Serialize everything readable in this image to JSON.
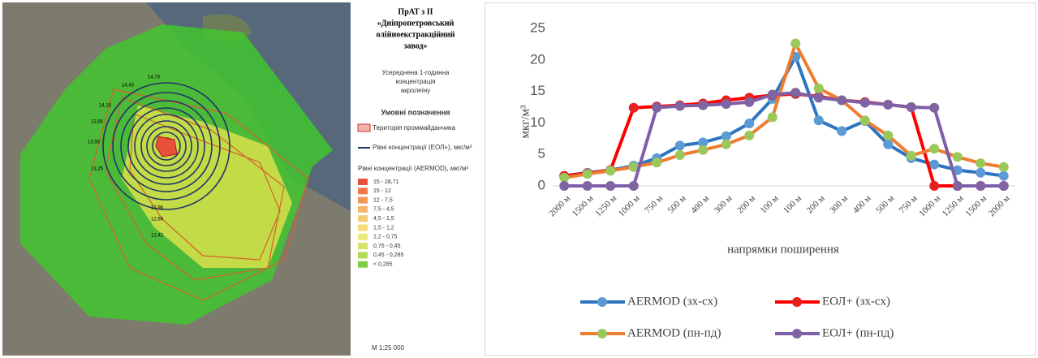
{
  "map": {
    "title": [
      "ПрАТ з ІІ",
      "«Дніпропетровський",
      "олійноекстракційний",
      "завод»"
    ],
    "subtitle": [
      "Усереднена 1-годинна",
      "концентрація",
      "акролеїну"
    ],
    "legend_title": "Умовні позначення",
    "site_label": "Територія проммайданчика",
    "eol_label": "Рівні концентрації (ЕОЛ+), мкг/м³",
    "aermod_label": "Рівні концентрації (AERMOD), мкг/м³",
    "levels": [
      "15 - 28,71",
      "15 - 12",
      "12 - 7,5",
      "7,5 - 4,5",
      "4,5 - 1,5",
      "1,5 - 1,2",
      "1,2 - 0,75",
      "0,75 - 0,45",
      "0,45 - 0,285",
      "< 0,285"
    ],
    "level_colors": [
      "#e8503a",
      "#ef7447",
      "#f39757",
      "#f6b46a",
      "#f7cb74",
      "#f4dd78",
      "#ece77a",
      "#d6e46a",
      "#b3da55",
      "#7fcd45"
    ],
    "contours": [
      "14,73",
      "14,43",
      "14,16",
      "13,86",
      "13,56",
      "13,25",
      "12,96",
      "12,69",
      "12,42"
    ],
    "scale": "М 1:25 000"
  },
  "chart_data": {
    "type": "line",
    "y_label": "мкг/м³",
    "x_label": "напрямки поширення",
    "categories": [
      "2000 м",
      "1500 м",
      "1250 м",
      "1000 м",
      "750 м",
      "500 м",
      "400 м",
      "300 м",
      "200 м",
      "100 м",
      "100 м",
      "200 м",
      "300 м",
      "400 м",
      "500 м",
      "750 м",
      "1000 м",
      "1250 м",
      "1500 м",
      "2000 м"
    ],
    "ylim": [
      0,
      25
    ],
    "yticks": [
      0,
      5,
      10,
      15,
      20,
      25
    ],
    "series": [
      {
        "name": "AERMOD (зх-сх)",
        "color": "#2e75c0",
        "marker_color": "#5b9bd5",
        "values": [
          1.6,
          2.1,
          2.5,
          3.2,
          4.4,
          6.4,
          6.9,
          7.9,
          9.9,
          13.8,
          20.5,
          10.4,
          8.7,
          10.3,
          6.6,
          4.4,
          3.4,
          2.5,
          2.1,
          1.6
        ]
      },
      {
        "name": "ЕОЛ+ (зх-сх)",
        "color": "#ff0000",
        "marker_color": "#e82020",
        "values": [
          1.6,
          2.0,
          2.5,
          12.4,
          12.6,
          12.8,
          13.1,
          13.6,
          14.0,
          14.4,
          14.6,
          14.2,
          13.6,
          13.3,
          12.9,
          12.5,
          0,
          0,
          0,
          0
        ]
      },
      {
        "name": "AERMOD (пн-пд)",
        "color": "#ed7d31",
        "marker_color": "#9bc85b",
        "values": [
          1.3,
          1.9,
          2.4,
          3.0,
          3.7,
          4.9,
          5.7,
          6.6,
          8.0,
          10.9,
          22.6,
          15.5,
          13.6,
          10.4,
          8.0,
          4.8,
          5.9,
          4.6,
          3.6,
          3.0
        ]
      },
      {
        "name": "ЕОЛ+ (пн-пд)",
        "color": "#7f5fa8",
        "marker_color": "#8064a2",
        "values": [
          0,
          0,
          0,
          0,
          12.4,
          12.7,
          12.8,
          13.0,
          13.3,
          14.5,
          14.8,
          14.0,
          13.6,
          13.2,
          12.9,
          12.5,
          12.4,
          0,
          0,
          0
        ]
      }
    ]
  }
}
